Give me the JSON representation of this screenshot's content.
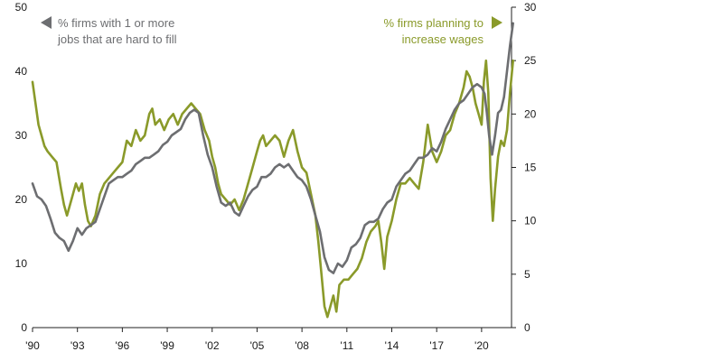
{
  "chart_data": {
    "type": "line",
    "x_ticks": [
      "'90",
      "'93",
      "'96",
      "'99",
      "'02",
      "'05",
      "'08",
      "'11",
      "'14",
      "'17",
      "'20"
    ],
    "xlim": [
      1990,
      2022
    ],
    "y_left": {
      "ticks": [
        "0",
        "10",
        "20",
        "30",
        "40",
        "50"
      ],
      "ylim": [
        0,
        50
      ]
    },
    "y_right": {
      "ticks": [
        "0",
        "5",
        "10",
        "15",
        "20",
        "25",
        "30"
      ],
      "ylim": [
        0,
        30
      ]
    },
    "legend_left": {
      "lines": [
        "% firms with 1 or more",
        "jobs that are hard to fill"
      ],
      "color": "#6d6e71"
    },
    "legend_right": {
      "lines": [
        "% firms planning to",
        "increase wages"
      ],
      "color": "#8a9a2a"
    },
    "series": [
      {
        "axis": "left",
        "color": "#6d6e71",
        "points": [
          [
            1990.0,
            22.5
          ],
          [
            1990.3,
            20.5
          ],
          [
            1990.6,
            20.0
          ],
          [
            1990.9,
            19.0
          ],
          [
            1991.2,
            17.0
          ],
          [
            1991.5,
            14.8
          ],
          [
            1991.8,
            14.0
          ],
          [
            1992.1,
            13.5
          ],
          [
            1992.4,
            12.0
          ],
          [
            1992.7,
            13.5
          ],
          [
            1993.0,
            15.5
          ],
          [
            1993.3,
            14.5
          ],
          [
            1993.6,
            15.5
          ],
          [
            1993.9,
            16.0
          ],
          [
            1994.2,
            16.5
          ],
          [
            1994.5,
            18.5
          ],
          [
            1994.8,
            20.5
          ],
          [
            1995.1,
            22.5
          ],
          [
            1995.4,
            23.0
          ],
          [
            1995.7,
            23.5
          ],
          [
            1996.0,
            23.5
          ],
          [
            1996.3,
            24.0
          ],
          [
            1996.6,
            24.5
          ],
          [
            1996.9,
            25.5
          ],
          [
            1997.2,
            26.0
          ],
          [
            1997.5,
            26.5
          ],
          [
            1997.8,
            26.5
          ],
          [
            1998.1,
            27.0
          ],
          [
            1998.4,
            27.5
          ],
          [
            1998.7,
            28.5
          ],
          [
            1999.0,
            29.0
          ],
          [
            1999.3,
            30.0
          ],
          [
            1999.6,
            30.5
          ],
          [
            1999.9,
            31.0
          ],
          [
            2000.2,
            32.5
          ],
          [
            2000.5,
            33.5
          ],
          [
            2000.8,
            34.0
          ],
          [
            2001.1,
            33.5
          ],
          [
            2001.4,
            30.0
          ],
          [
            2001.7,
            27.0
          ],
          [
            2002.0,
            25.0
          ],
          [
            2002.3,
            22.0
          ],
          [
            2002.6,
            19.5
          ],
          [
            2002.9,
            19.0
          ],
          [
            2003.2,
            19.5
          ],
          [
            2003.5,
            18.0
          ],
          [
            2003.8,
            17.5
          ],
          [
            2004.1,
            19.0
          ],
          [
            2004.4,
            20.5
          ],
          [
            2004.7,
            21.5
          ],
          [
            2005.0,
            22.0
          ],
          [
            2005.3,
            23.5
          ],
          [
            2005.6,
            23.5
          ],
          [
            2005.9,
            24.0
          ],
          [
            2006.2,
            25.0
          ],
          [
            2006.5,
            25.5
          ],
          [
            2006.8,
            25.0
          ],
          [
            2007.1,
            25.5
          ],
          [
            2007.4,
            24.5
          ],
          [
            2007.7,
            23.5
          ],
          [
            2008.0,
            23.0
          ],
          [
            2008.3,
            22.0
          ],
          [
            2008.6,
            20.0
          ],
          [
            2008.9,
            17.5
          ],
          [
            2009.2,
            15.0
          ],
          [
            2009.5,
            11.0
          ],
          [
            2009.8,
            9.0
          ],
          [
            2010.1,
            8.5
          ],
          [
            2010.4,
            10.0
          ],
          [
            2010.7,
            9.5
          ],
          [
            2011.0,
            10.5
          ],
          [
            2011.3,
            12.5
          ],
          [
            2011.6,
            13.0
          ],
          [
            2011.9,
            14.0
          ],
          [
            2012.2,
            16.0
          ],
          [
            2012.5,
            16.5
          ],
          [
            2012.8,
            16.5
          ],
          [
            2013.1,
            17.0
          ],
          [
            2013.4,
            18.5
          ],
          [
            2013.7,
            19.5
          ],
          [
            2014.0,
            20.0
          ],
          [
            2014.3,
            22.0
          ],
          [
            2014.6,
            23.0
          ],
          [
            2014.9,
            24.0
          ],
          [
            2015.2,
            24.5
          ],
          [
            2015.5,
            25.5
          ],
          [
            2015.8,
            26.5
          ],
          [
            2016.1,
            26.5
          ],
          [
            2016.4,
            27.0
          ],
          [
            2016.7,
            28.0
          ],
          [
            2017.0,
            27.5
          ],
          [
            2017.3,
            29.0
          ],
          [
            2017.6,
            31.0
          ],
          [
            2017.9,
            32.5
          ],
          [
            2018.2,
            34.0
          ],
          [
            2018.5,
            35.0
          ],
          [
            2018.8,
            35.5
          ],
          [
            2019.1,
            36.5
          ],
          [
            2019.4,
            37.5
          ],
          [
            2019.7,
            38.0
          ],
          [
            2020.0,
            37.5
          ],
          [
            2020.2,
            36.5
          ],
          [
            2020.35,
            33.5
          ],
          [
            2020.5,
            30.0
          ],
          [
            2020.7,
            27.0
          ],
          [
            2020.9,
            30.0
          ],
          [
            2021.1,
            33.5
          ],
          [
            2021.3,
            34.0
          ],
          [
            2021.5,
            36.0
          ],
          [
            2021.7,
            40.0
          ],
          [
            2021.9,
            44.0
          ],
          [
            2022.1,
            47.5
          ]
        ]
      },
      {
        "axis": "right",
        "color": "#8a9a2a",
        "points": [
          [
            1990.0,
            23.0
          ],
          [
            1990.2,
            21.0
          ],
          [
            1990.4,
            19.0
          ],
          [
            1990.6,
            18.0
          ],
          [
            1990.8,
            17.0
          ],
          [
            1991.0,
            16.5
          ],
          [
            1991.3,
            16.0
          ],
          [
            1991.6,
            15.5
          ],
          [
            1991.9,
            13.0
          ],
          [
            1992.1,
            11.5
          ],
          [
            1992.3,
            10.5
          ],
          [
            1992.6,
            12.0
          ],
          [
            1992.9,
            13.5
          ],
          [
            1993.1,
            12.8
          ],
          [
            1993.3,
            13.5
          ],
          [
            1993.5,
            11.5
          ],
          [
            1993.7,
            10.0
          ],
          [
            1993.9,
            9.5
          ],
          [
            1994.2,
            10.5
          ],
          [
            1994.5,
            12.5
          ],
          [
            1994.8,
            13.5
          ],
          [
            1995.1,
            14.0
          ],
          [
            1995.4,
            14.5
          ],
          [
            1995.7,
            15.0
          ],
          [
            1996.0,
            15.5
          ],
          [
            1996.3,
            17.5
          ],
          [
            1996.6,
            17.0
          ],
          [
            1996.9,
            18.5
          ],
          [
            1997.2,
            17.5
          ],
          [
            1997.5,
            18.0
          ],
          [
            1997.8,
            20.0
          ],
          [
            1998.0,
            20.5
          ],
          [
            1998.2,
            19.0
          ],
          [
            1998.5,
            19.5
          ],
          [
            1998.8,
            18.5
          ],
          [
            1999.1,
            19.5
          ],
          [
            1999.4,
            20.0
          ],
          [
            1999.7,
            19.0
          ],
          [
            2000.0,
            20.0
          ],
          [
            2000.3,
            20.5
          ],
          [
            2000.6,
            21.0
          ],
          [
            2000.9,
            20.5
          ],
          [
            2001.2,
            20.0
          ],
          [
            2001.5,
            18.5
          ],
          [
            2001.8,
            17.5
          ],
          [
            2002.0,
            16.0
          ],
          [
            2002.2,
            15.0
          ],
          [
            2002.4,
            13.5
          ],
          [
            2002.6,
            12.5
          ],
          [
            2002.9,
            12.0
          ],
          [
            2003.2,
            11.5
          ],
          [
            2003.5,
            12.0
          ],
          [
            2003.8,
            11.0
          ],
          [
            2004.1,
            12.0
          ],
          [
            2004.4,
            13.5
          ],
          [
            2004.7,
            15.0
          ],
          [
            2005.0,
            16.5
          ],
          [
            2005.2,
            17.5
          ],
          [
            2005.4,
            18.0
          ],
          [
            2005.6,
            17.0
          ],
          [
            2005.9,
            17.5
          ],
          [
            2006.2,
            18.0
          ],
          [
            2006.5,
            17.5
          ],
          [
            2006.8,
            16.0
          ],
          [
            2007.1,
            17.5
          ],
          [
            2007.4,
            18.5
          ],
          [
            2007.7,
            16.5
          ],
          [
            2008.0,
            15.0
          ],
          [
            2008.3,
            14.5
          ],
          [
            2008.6,
            12.5
          ],
          [
            2008.9,
            10.5
          ],
          [
            2009.1,
            8.0
          ],
          [
            2009.3,
            5.0
          ],
          [
            2009.5,
            2.0
          ],
          [
            2009.7,
            1.0
          ],
          [
            2009.9,
            2.0
          ],
          [
            2010.1,
            3.0
          ],
          [
            2010.3,
            1.5
          ],
          [
            2010.5,
            4.0
          ],
          [
            2010.8,
            4.5
          ],
          [
            2011.1,
            4.5
          ],
          [
            2011.4,
            5.0
          ],
          [
            2011.7,
            5.5
          ],
          [
            2012.0,
            6.5
          ],
          [
            2012.3,
            8.0
          ],
          [
            2012.6,
            9.0
          ],
          [
            2012.9,
            9.5
          ],
          [
            2013.1,
            10.0
          ],
          [
            2013.3,
            8.0
          ],
          [
            2013.5,
            5.5
          ],
          [
            2013.7,
            8.5
          ],
          [
            2014.0,
            10.0
          ],
          [
            2014.3,
            12.0
          ],
          [
            2014.6,
            13.5
          ],
          [
            2014.9,
            13.5
          ],
          [
            2015.2,
            14.0
          ],
          [
            2015.5,
            13.5
          ],
          [
            2015.8,
            13.0
          ],
          [
            2016.1,
            15.5
          ],
          [
            2016.4,
            19.0
          ],
          [
            2016.7,
            16.5
          ],
          [
            2017.0,
            15.5
          ],
          [
            2017.3,
            16.5
          ],
          [
            2017.6,
            18.0
          ],
          [
            2017.9,
            18.5
          ],
          [
            2018.2,
            20.0
          ],
          [
            2018.5,
            21.0
          ],
          [
            2018.8,
            22.5
          ],
          [
            2019.0,
            24.0
          ],
          [
            2019.2,
            23.5
          ],
          [
            2019.4,
            22.5
          ],
          [
            2019.6,
            21.0
          ],
          [
            2019.8,
            20.0
          ],
          [
            2020.0,
            19.0
          ],
          [
            2020.15,
            23.0
          ],
          [
            2020.3,
            25.0
          ],
          [
            2020.45,
            22.0
          ],
          [
            2020.6,
            14.0
          ],
          [
            2020.75,
            10.0
          ],
          [
            2020.9,
            13.0
          ],
          [
            2021.1,
            16.0
          ],
          [
            2021.3,
            17.5
          ],
          [
            2021.5,
            17.0
          ],
          [
            2021.7,
            18.5
          ],
          [
            2021.9,
            22.0
          ],
          [
            2022.1,
            25.0
          ]
        ]
      }
    ]
  }
}
